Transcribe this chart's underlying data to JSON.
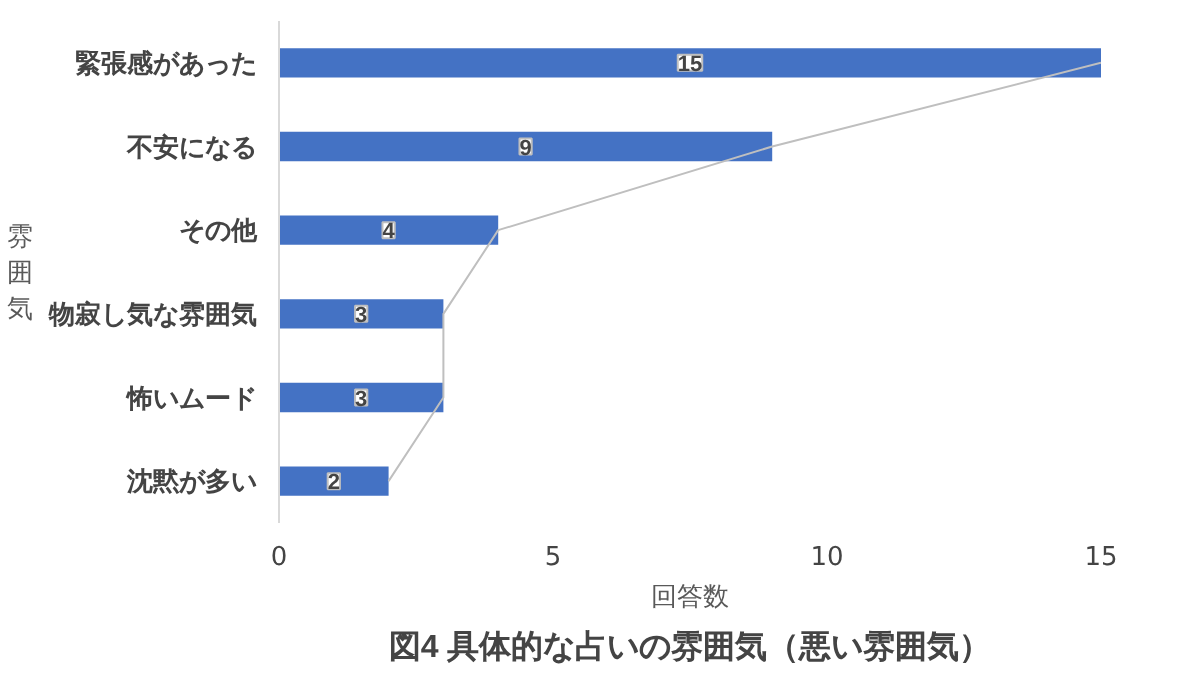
{
  "chart_data": {
    "type": "bar",
    "orientation": "horizontal",
    "title": "図4 具体的な占いの雰囲気（悪い雰囲気）",
    "xlabel": "回答数",
    "ylabel": "雰囲気",
    "categories": [
      "緊張感があった",
      "不安になる",
      "その他",
      "物寂し気な雰囲気",
      "怖いムード",
      "沈黙が多い"
    ],
    "series": [
      {
        "color": "#4472c4",
        "values": [
          15,
          9,
          4,
          3,
          3,
          2
        ],
        "value_labels": [
          "15",
          "9",
          "4",
          "3",
          "3",
          "2"
        ]
      },
      {
        "type": "line",
        "color": "#bfbfbf",
        "values": [
          15,
          9,
          4,
          3,
          3,
          2
        ]
      }
    ],
    "xlim": [
      0,
      15
    ],
    "xticks": [
      0,
      5,
      10,
      15
    ],
    "grid": false
  }
}
